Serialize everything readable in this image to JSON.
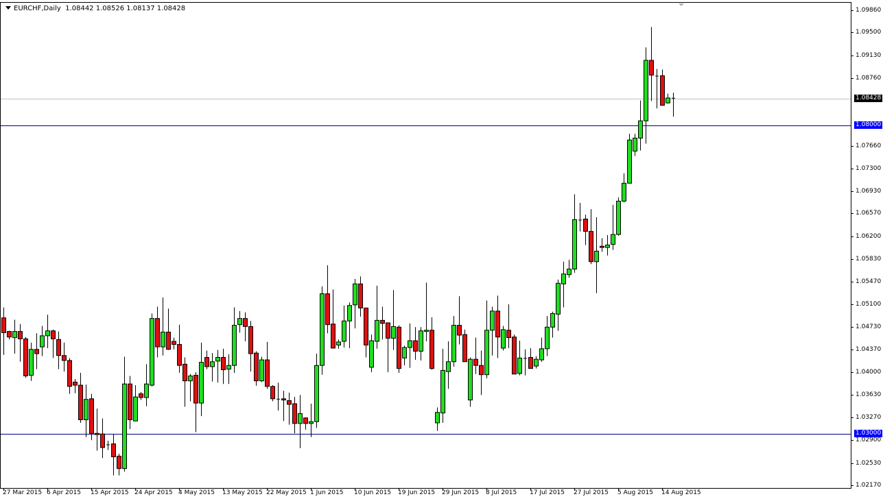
{
  "header": {
    "symbol": "EURCHF,Daily",
    "ohlc": "1.08442 1.08526 1.08137 1.08428"
  },
  "colors": {
    "bull": "#22dd22",
    "bear": "#dd1111",
    "level_line": "#000080",
    "current_line": "#c0c0c0",
    "current_label_bg": "#000000",
    "level_label_bg": "#0000ff"
  },
  "chart_data": {
    "type": "candlestick",
    "title": "EURCHF,Daily",
    "ylim": [
      1.0217,
      1.0986
    ],
    "yticks": [
      "1.09860",
      "1.09500",
      "1.09130",
      "1.08760",
      "1.07660",
      "1.07300",
      "1.06930",
      "1.06570",
      "1.06200",
      "1.05830",
      "1.05470",
      "1.05100",
      "1.04730",
      "1.04370",
      "1.04000",
      "1.03630",
      "1.03270",
      "1.02900",
      "1.02530",
      "1.02170"
    ],
    "xticks": [
      "27 Mar 2015",
      "6 Apr 2015",
      "15 Apr 2015",
      "24 Apr 2015",
      "4 May 2015",
      "13 May 2015",
      "22 May 2015",
      "1 Jun 2015",
      "10 Jun 2015",
      "19 Jun 2015",
      "29 Jun 2015",
      "8 Jul 2015",
      "17 Jul 2015",
      "27 Jul 2015",
      "5 Aug 2015",
      "14 Aug 2015"
    ],
    "current_price": {
      "value": 1.08428,
      "label": "1.08428"
    },
    "horizontal_levels": [
      {
        "value": 1.08,
        "label": "1.08000"
      },
      {
        "value": 1.03,
        "label": "1.03000"
      }
    ],
    "ohlc": [
      [
        1.0488,
        1.0505,
        1.0428,
        1.0464
      ],
      [
        1.0466,
        1.0467,
        1.0453,
        1.0457
      ],
      [
        1.0456,
        1.0485,
        1.043,
        1.0466
      ],
      [
        1.0466,
        1.0478,
        1.0417,
        1.0454
      ],
      [
        1.0454,
        1.0457,
        1.0391,
        1.0394
      ],
      [
        1.0395,
        1.0448,
        1.0386,
        1.0437
      ],
      [
        1.0437,
        1.0463,
        1.0405,
        1.043
      ],
      [
        1.0441,
        1.0475,
        1.0426,
        1.0459
      ],
      [
        1.0459,
        1.0493,
        1.0439,
        1.0467
      ],
      [
        1.0467,
        1.0469,
        1.0423,
        1.0454
      ],
      [
        1.0453,
        1.0466,
        1.0405,
        1.0427
      ],
      [
        1.0427,
        1.0448,
        1.0401,
        1.0419
      ],
      [
        1.0419,
        1.0423,
        1.0365,
        1.0377
      ],
      [
        1.0384,
        1.0389,
        1.0366,
        1.0379
      ],
      [
        1.0379,
        1.0399,
        1.0318,
        1.0323
      ],
      [
        1.0323,
        1.038,
        1.0295,
        1.0356
      ],
      [
        1.0357,
        1.0365,
        1.029,
        1.0301
      ],
      [
        1.0301,
        1.0341,
        1.0273,
        1.0299
      ],
      [
        1.03,
        1.0325,
        1.0261,
        1.0278
      ],
      [
        1.0283,
        1.0289,
        1.0274,
        1.0283
      ],
      [
        1.0284,
        1.03,
        1.0233,
        1.0263
      ],
      [
        1.0264,
        1.0268,
        1.0233,
        1.0244
      ],
      [
        1.0244,
        1.0425,
        1.0239,
        1.0381
      ],
      [
        1.0381,
        1.0394,
        1.0308,
        1.0323
      ],
      [
        1.0321,
        1.0379,
        1.0321,
        1.036
      ],
      [
        1.0365,
        1.0368,
        1.0355,
        1.0359
      ],
      [
        1.0359,
        1.0413,
        1.0345,
        1.0381
      ],
      [
        1.0379,
        1.0495,
        1.0377,
        1.0487
      ],
      [
        1.0487,
        1.0506,
        1.0424,
        1.0441
      ],
      [
        1.0441,
        1.0521,
        1.0427,
        1.0465
      ],
      [
        1.0465,
        1.0503,
        1.0436,
        1.0437
      ],
      [
        1.045,
        1.0456,
        1.0437,
        1.0445
      ],
      [
        1.0445,
        1.0477,
        1.0399,
        1.0411
      ],
      [
        1.0413,
        1.0424,
        1.0344,
        1.0386
      ],
      [
        1.0386,
        1.0397,
        1.0353,
        1.0394
      ],
      [
        1.0395,
        1.04,
        1.0303,
        1.035
      ],
      [
        1.035,
        1.0448,
        1.0329,
        1.0416
      ],
      [
        1.0424,
        1.0435,
        1.0405,
        1.0409
      ],
      [
        1.0409,
        1.0431,
        1.0385,
        1.0417
      ],
      [
        1.0418,
        1.0436,
        1.0383,
        1.0424
      ],
      [
        1.0424,
        1.0438,
        1.0381,
        1.0404
      ],
      [
        1.0405,
        1.0429,
        1.0381,
        1.0411
      ],
      [
        1.0411,
        1.0505,
        1.0399,
        1.0476
      ],
      [
        1.0477,
        1.0499,
        1.0464,
        1.0487
      ],
      [
        1.0487,
        1.0497,
        1.045,
        1.0474
      ],
      [
        1.0474,
        1.0483,
        1.0401,
        1.043
      ],
      [
        1.0431,
        1.0434,
        1.0378,
        1.0386
      ],
      [
        1.0386,
        1.0425,
        1.0384,
        1.042
      ],
      [
        1.042,
        1.0449,
        1.0373,
        1.0377
      ],
      [
        1.0377,
        1.0379,
        1.0353,
        1.0357
      ],
      [
        1.0357,
        1.0383,
        1.0338,
        1.0357
      ],
      [
        1.0357,
        1.037,
        1.0321,
        1.0355
      ],
      [
        1.0354,
        1.0367,
        1.0315,
        1.0348
      ],
      [
        1.0349,
        1.036,
        1.0301,
        1.0317
      ],
      [
        1.0317,
        1.0363,
        1.0277,
        1.0333
      ],
      [
        1.0326,
        1.0327,
        1.0307,
        1.0317
      ],
      [
        1.0317,
        1.0349,
        1.0295,
        1.032
      ],
      [
        1.032,
        1.043,
        1.031,
        1.0411
      ],
      [
        1.0411,
        1.0539,
        1.0396,
        1.0527
      ],
      [
        1.0527,
        1.0573,
        1.0463,
        1.0477
      ],
      [
        1.0478,
        1.0534,
        1.0439,
        1.0439
      ],
      [
        1.0444,
        1.0453,
        1.0438,
        1.0449
      ],
      [
        1.045,
        1.0508,
        1.044,
        1.0483
      ],
      [
        1.0483,
        1.0513,
        1.0439,
        1.0508
      ],
      [
        1.0509,
        1.0551,
        1.0471,
        1.0543
      ],
      [
        1.0543,
        1.0555,
        1.049,
        1.0504
      ],
      [
        1.0504,
        1.0504,
        1.0424,
        1.0444
      ],
      [
        1.0408,
        1.0461,
        1.04,
        1.0451
      ],
      [
        1.045,
        1.054,
        1.0438,
        1.0484
      ],
      [
        1.0484,
        1.0506,
        1.0453,
        1.0479
      ],
      [
        1.048,
        1.048,
        1.04,
        1.0455
      ],
      [
        1.0455,
        1.0533,
        1.0436,
        1.0474
      ],
      [
        1.0473,
        1.0476,
        1.0399,
        1.0406
      ],
      [
        1.0423,
        1.0443,
        1.0411,
        1.044
      ],
      [
        1.044,
        1.0479,
        1.0407,
        1.0451
      ],
      [
        1.0451,
        1.0473,
        1.042,
        1.0434
      ],
      [
        1.0434,
        1.0473,
        1.0419,
        1.0467
      ],
      [
        1.0466,
        1.0545,
        1.045,
        1.0468
      ],
      [
        1.0468,
        1.0489,
        1.0404,
        1.0406
      ],
      [
        1.0318,
        1.0343,
        1.0305,
        1.0335
      ],
      [
        1.0334,
        1.0438,
        1.0318,
        1.0403
      ],
      [
        1.0401,
        1.045,
        1.0373,
        1.0417
      ],
      [
        1.0417,
        1.0491,
        1.0409,
        1.0476
      ],
      [
        1.0476,
        1.0523,
        1.0445,
        1.046
      ],
      [
        1.0461,
        1.0469,
        1.0417,
        1.0417
      ],
      [
        1.0355,
        1.0424,
        1.0344,
        1.0421
      ],
      [
        1.0421,
        1.0456,
        1.0397,
        1.0411
      ],
      [
        1.0411,
        1.0435,
        1.0363,
        1.0396
      ],
      [
        1.0396,
        1.0516,
        1.039,
        1.0468
      ],
      [
        1.0468,
        1.0506,
        1.0427,
        1.0499
      ],
      [
        1.0499,
        1.0524,
        1.0423,
        1.0457
      ],
      [
        1.0439,
        1.0475,
        1.0435,
        1.0469
      ],
      [
        1.0468,
        1.051,
        1.0439,
        1.0456
      ],
      [
        1.0457,
        1.0461,
        1.0397,
        1.0397
      ],
      [
        1.0398,
        1.0451,
        1.0395,
        1.0423
      ],
      [
        1.0423,
        1.0437,
        1.0395,
        1.0423
      ],
      [
        1.0424,
        1.0439,
        1.0406,
        1.0406
      ],
      [
        1.041,
        1.0426,
        1.0406,
        1.0421
      ],
      [
        1.042,
        1.0456,
        1.0417,
        1.0438
      ],
      [
        1.0438,
        1.0491,
        1.0426,
        1.0473
      ],
      [
        1.0473,
        1.0498,
        1.0456,
        1.0495
      ],
      [
        1.0494,
        1.055,
        1.0467,
        1.0544
      ],
      [
        1.0543,
        1.0579,
        1.0505,
        1.0559
      ],
      [
        1.0558,
        1.0582,
        1.0553,
        1.0567
      ],
      [
        1.0567,
        1.0688,
        1.0561,
        1.0647
      ],
      [
        1.0647,
        1.0674,
        1.0628,
        1.0647
      ],
      [
        1.0648,
        1.0655,
        1.0606,
        1.0628
      ],
      [
        1.0628,
        1.0664,
        1.0575,
        1.0579
      ],
      [
        1.0579,
        1.0651,
        1.0528,
        1.0596
      ],
      [
        1.0604,
        1.0617,
        1.0595,
        1.0602
      ],
      [
        1.0602,
        1.0622,
        1.0589,
        1.0606
      ],
      [
        1.0607,
        1.0671,
        1.0598,
        1.0623
      ],
      [
        1.0623,
        1.0683,
        1.0621,
        1.0677
      ],
      [
        1.0677,
        1.0722,
        1.0675,
        1.0706
      ],
      [
        1.0706,
        1.0786,
        1.0706,
        1.0776
      ],
      [
        1.0758,
        1.0786,
        1.075,
        1.0779
      ],
      [
        1.0779,
        1.084,
        1.0759,
        1.0807
      ],
      [
        1.0807,
        1.0926,
        1.077,
        1.0905
      ],
      [
        1.0905,
        1.0959,
        1.0839,
        1.0881
      ],
      [
        1.088,
        1.0891,
        1.0827,
        1.088
      ],
      [
        1.088,
        1.089,
        1.0832,
        1.0832
      ],
      [
        1.0836,
        1.0851,
        1.0835,
        1.0844
      ],
      [
        1.08442,
        1.08526,
        1.08137,
        1.08428
      ]
    ]
  }
}
